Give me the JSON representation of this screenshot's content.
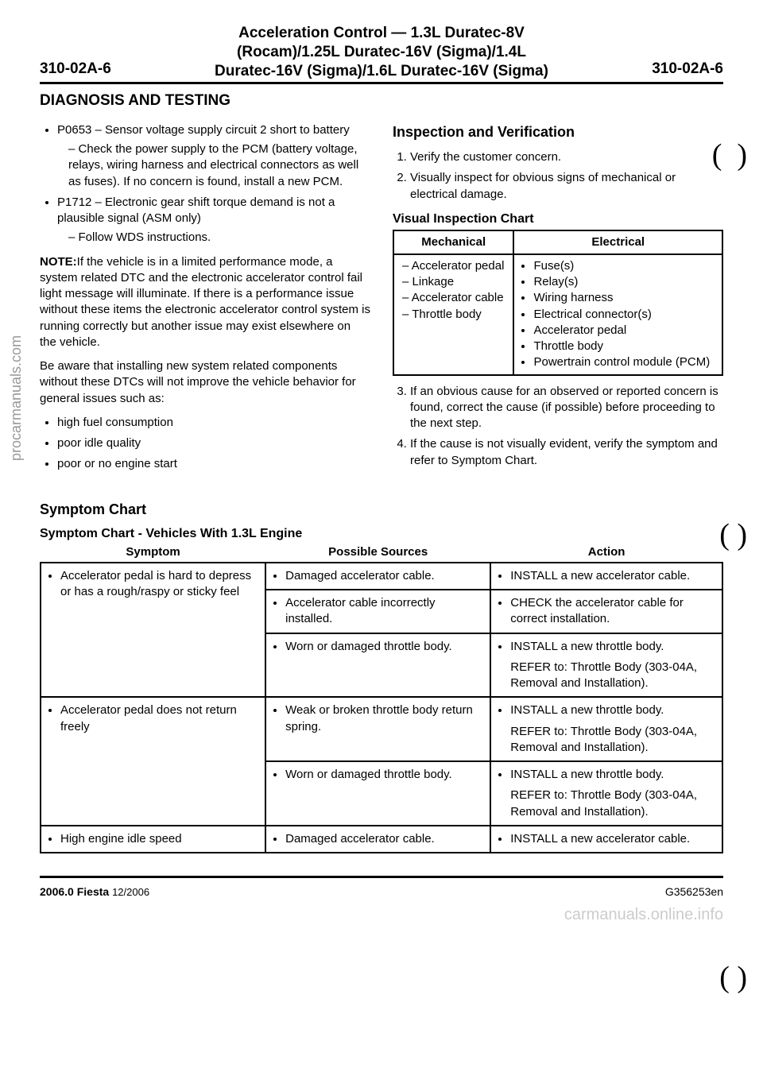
{
  "vertical_watermark": "procarmanuals.com",
  "header": {
    "left": "310-02A-6",
    "center_lines": [
      "Acceleration Control — 1.3L Duratec-8V",
      "(Rocam)/1.25L Duratec-16V (Sigma)/1.4L",
      "Duratec-16V (Sigma)/1.6L Duratec-16V (Sigma)"
    ],
    "right": "310-02A-6"
  },
  "diagnosis_title": "DIAGNOSIS AND TESTING",
  "left_col": {
    "dtc1_title": "P0653 – Sensor voltage supply circuit 2 short to battery",
    "dtc1_sub": "Check the power supply to the PCM (battery voltage, relays, wiring harness and electrical connectors as well as fuses). If no concern is found, install a new PCM.",
    "dtc2_title": "P1712 – Electronic gear shift torque demand is not a plausible signal (ASM only)",
    "dtc2_sub": "Follow WDS instructions.",
    "note_label": "NOTE:",
    "note_body": "If the vehicle is in a limited performance mode, a system related DTC and the electronic accelerator control fail light message will illuminate. If there is a performance issue without these items the electronic accelerator control system is running correctly but another issue may exist elsewhere on the vehicle.",
    "para2": "Be aware that installing new system related components without these DTCs will not improve the vehicle behavior for general issues such as:",
    "issues": [
      "high fuel consumption",
      "poor idle quality",
      "poor or no engine start"
    ]
  },
  "right_col": {
    "heading": "Inspection and Verification",
    "step1": "Verify the customer concern.",
    "step2": "Visually inspect for obvious signs of mechanical or electrical damage.",
    "vis_chart_title": "Visual Inspection Chart",
    "vis_headers": [
      "Mechanical",
      "Electrical"
    ],
    "mechanical": [
      "Accelerator pedal",
      "Linkage",
      "Accelerator cable",
      "Throttle body"
    ],
    "electrical": [
      "Fuse(s)",
      "Relay(s)",
      "Wiring harness",
      "Electrical connector(s)",
      "Accelerator pedal",
      "Throttle body",
      "Powertrain control module (PCM)"
    ],
    "step3": "If an obvious cause for an observed or reported concern is found, correct the cause (if possible) before proceeding to the next step.",
    "step4": "If the cause is not visually evident, verify the symptom and refer to Symptom Chart."
  },
  "symptom_chart": {
    "title": "Symptom Chart",
    "subtitle": "Symptom Chart - Vehicles With 1.3L Engine",
    "headers": [
      "Symptom",
      "Possible Sources",
      "Action"
    ],
    "rows": [
      {
        "symptom": "Accelerator pedal is hard to depress or has a rough/raspy or sticky feel",
        "symptom_rowspan": 3,
        "source": "Damaged accelerator cable.",
        "action": "INSTALL a new accelerator cable.",
        "action_extra": ""
      },
      {
        "source": "Accelerator cable incorrectly installed.",
        "action": "CHECK the accelerator cable for correct installation.",
        "action_extra": ""
      },
      {
        "source": "Worn or damaged throttle body.",
        "action": "INSTALL a new throttle body.",
        "action_extra": "REFER to: Throttle Body (303-04A, Removal and Installation)."
      },
      {
        "symptom": "Accelerator pedal does not return freely",
        "symptom_rowspan": 2,
        "source": "Weak or broken throttle body return spring.",
        "action": "INSTALL a new throttle body.",
        "action_extra": "REFER to: Throttle Body (303-04A, Removal and Installation)."
      },
      {
        "source": "Worn or damaged throttle body.",
        "action": "INSTALL a new throttle body.",
        "action_extra": "REFER to: Throttle Body (303-04A, Removal and Installation)."
      },
      {
        "symptom": "High engine idle speed",
        "symptom_rowspan": 1,
        "source": "Damaged accelerator cable.",
        "action": "INSTALL a new accelerator cable.",
        "action_extra": ""
      }
    ]
  },
  "footer": {
    "left_bold": "2006.0 Fiesta",
    "left_year": "12/2006",
    "right": "G356253en"
  },
  "bottom_watermark": "carmanuals.online.info"
}
